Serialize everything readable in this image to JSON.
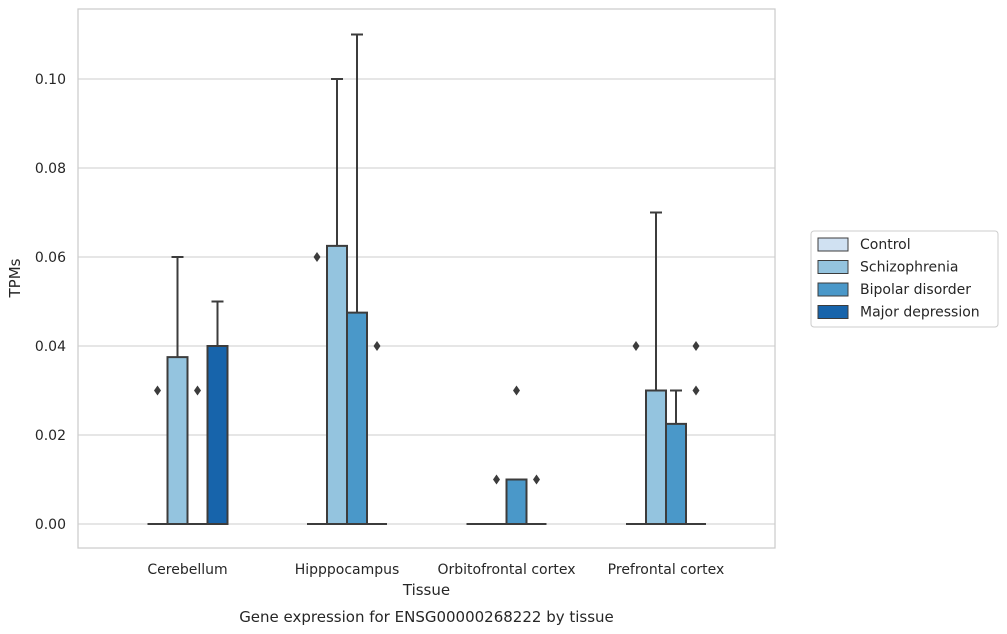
{
  "chart_data": {
    "type": "box",
    "xlabel": "Tissue",
    "ylabel": "TPMs",
    "caption": "Gene expression for ENSG00000268222 by tissue",
    "categories": [
      "Cerebellum",
      "Hipppocampus",
      "Orbitofrontal cortex",
      "Prefrontal cortex"
    ],
    "ylim": [
      -0.0055,
      0.116
    ],
    "yticks": [
      "0.00",
      "0.02",
      "0.04",
      "0.06",
      "0.08",
      "0.10"
    ],
    "ytick_values": [
      0,
      0.02,
      0.04,
      0.06,
      0.08,
      0.1
    ],
    "grid": true,
    "legend_position": "right",
    "series": [
      {
        "name": "Control",
        "color": "#d0e1f2",
        "boxes": [
          {
            "q1": 0,
            "median": 0,
            "q3": 0,
            "whisker_low": 0,
            "whisker_high": 0,
            "outliers": [
              0.03
            ]
          },
          {
            "q1": 0,
            "median": 0,
            "q3": 0,
            "whisker_low": 0,
            "whisker_high": 0,
            "outliers": [
              0.06
            ]
          },
          {
            "q1": 0,
            "median": 0,
            "q3": 0,
            "whisker_low": 0,
            "whisker_high": 0,
            "outliers": []
          },
          {
            "q1": 0,
            "median": 0,
            "q3": 0,
            "whisker_low": 0,
            "whisker_high": 0,
            "outliers": [
              0.04
            ]
          }
        ]
      },
      {
        "name": "Schizophrenia",
        "color": "#94c4df",
        "boxes": [
          {
            "q1": 0,
            "median": 0,
            "q3": 0.0375,
            "whisker_low": 0,
            "whisker_high": 0.06,
            "outliers": []
          },
          {
            "q1": 0,
            "median": 0,
            "q3": 0.0625,
            "whisker_low": 0,
            "whisker_high": 0.1,
            "outliers": []
          },
          {
            "q1": 0,
            "median": 0,
            "q3": 0,
            "whisker_low": 0,
            "whisker_high": 0,
            "outliers": [
              0.01
            ]
          },
          {
            "q1": 0,
            "median": 0,
            "q3": 0.03,
            "whisker_low": 0,
            "whisker_high": 0.07,
            "outliers": []
          }
        ]
      },
      {
        "name": "Bipolar disorder",
        "color": "#4a98c9",
        "boxes": [
          {
            "q1": 0,
            "median": 0,
            "q3": 0,
            "whisker_low": 0,
            "whisker_high": 0,
            "outliers": [
              0.03
            ]
          },
          {
            "q1": 0,
            "median": 0,
            "q3": 0.0475,
            "whisker_low": 0,
            "whisker_high": 0.11,
            "outliers": []
          },
          {
            "q1": 0,
            "median": 0,
            "q3": 0.01,
            "whisker_low": 0,
            "whisker_high": 0.01,
            "outliers": [
              0.03
            ]
          },
          {
            "q1": 0,
            "median": 0,
            "q3": 0.0225,
            "whisker_low": 0,
            "whisker_high": 0.03,
            "outliers": []
          }
        ]
      },
      {
        "name": "Major depression",
        "color": "#1764ab",
        "boxes": [
          {
            "q1": 0,
            "median": 0,
            "q3": 0.04,
            "whisker_low": 0,
            "whisker_high": 0.05,
            "outliers": []
          },
          {
            "q1": 0,
            "median": 0,
            "q3": 0,
            "whisker_low": 0,
            "whisker_high": 0,
            "outliers": [
              0.04
            ]
          },
          {
            "q1": 0,
            "median": 0,
            "q3": 0,
            "whisker_low": 0,
            "whisker_high": 0,
            "outliers": [
              0.01
            ]
          },
          {
            "q1": 0,
            "median": 0,
            "q3": 0,
            "whisker_low": 0,
            "whisker_high": 0,
            "outliers": [
              0.03,
              0.04
            ]
          }
        ]
      }
    ]
  }
}
